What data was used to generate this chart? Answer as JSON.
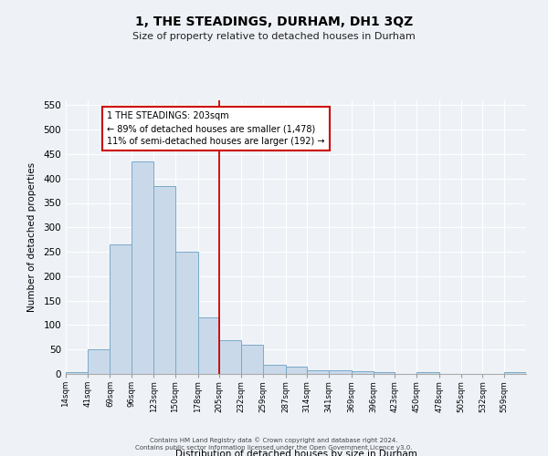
{
  "title": "1, THE STEADINGS, DURHAM, DH1 3QZ",
  "subtitle": "Size of property relative to detached houses in Durham",
  "xlabel": "Distribution of detached houses by size in Durham",
  "ylabel": "Number of detached properties",
  "bin_labels": [
    "14sqm",
    "41sqm",
    "69sqm",
    "96sqm",
    "123sqm",
    "150sqm",
    "178sqm",
    "205sqm",
    "232sqm",
    "259sqm",
    "287sqm",
    "314sqm",
    "341sqm",
    "369sqm",
    "396sqm",
    "423sqm",
    "450sqm",
    "478sqm",
    "505sqm",
    "532sqm",
    "559sqm"
  ],
  "bin_edges": [
    14,
    41,
    69,
    96,
    123,
    150,
    178,
    205,
    232,
    259,
    287,
    314,
    341,
    369,
    396,
    423,
    450,
    478,
    505,
    532,
    559,
    586
  ],
  "bar_values": [
    3,
    50,
    265,
    435,
    385,
    250,
    115,
    70,
    60,
    18,
    15,
    8,
    7,
    5,
    3,
    0,
    3,
    0,
    0,
    0,
    3
  ],
  "bar_color": "#c9d9ea",
  "bar_edge_color": "#7aaac8",
  "vline_x": 205,
  "vline_color": "#cc0000",
  "vline_lw": 1.3,
  "ylim": [
    0,
    560
  ],
  "yticks": [
    0,
    50,
    100,
    150,
    200,
    250,
    300,
    350,
    400,
    450,
    500,
    550
  ],
  "annotation_title": "1 THE STEADINGS: 203sqm",
  "annotation_line1": "← 89% of detached houses are smaller (1,478)",
  "annotation_line2": "11% of semi-detached houses are larger (192) →",
  "annotation_box_color": "#cc0000",
  "background_color": "#eef2f7",
  "grid_color": "#ffffff",
  "footer1": "Contains HM Land Registry data © Crown copyright and database right 2024.",
  "footer2": "Contains public sector information licensed under the Open Government Licence v3.0."
}
